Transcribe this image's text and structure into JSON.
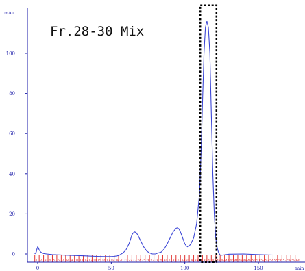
{
  "chart_data": {
    "type": "line",
    "title": "Fr.28-30 Mix",
    "ylabel": "mAu",
    "xlabel": "min",
    "xlim": [
      -7,
      175
    ],
    "ylim": [
      -4,
      125
    ],
    "xticks": [
      0,
      50,
      100,
      150
    ],
    "yticks": [
      0,
      20,
      40,
      60,
      80,
      100
    ],
    "grid": false,
    "line_color": "#3b46d6",
    "axis_color": "#1a1aa8",
    "fraction_marker_color": "#e0322f",
    "series": [
      {
        "x": [
          -2,
          -1,
          -0.5,
          0,
          0.5,
          1,
          2,
          3,
          4,
          6,
          10,
          20,
          30,
          40,
          45,
          50,
          52,
          55,
          58,
          60,
          62,
          63,
          64,
          65,
          66,
          67,
          68,
          69,
          70,
          72,
          74,
          76,
          78,
          80,
          82,
          84,
          86,
          88,
          90,
          92,
          94,
          95,
          96,
          97,
          98,
          99,
          100,
          101,
          102,
          103,
          104,
          106,
          108,
          110,
          111,
          112,
          113,
          114,
          115,
          116,
          117,
          118,
          119,
          120,
          121,
          122,
          123,
          124,
          125,
          126,
          128,
          130,
          140,
          150,
          160,
          170,
          175
        ],
        "y": [
          0,
          1,
          2.5,
          3.5,
          3,
          2,
          1,
          0.5,
          0.2,
          0,
          -0.3,
          -0.6,
          -0.9,
          -1.2,
          -1.3,
          -1.3,
          -1.2,
          -0.8,
          0.5,
          2,
          5,
          7,
          9.5,
          10.5,
          11,
          10.5,
          9.5,
          8,
          6.5,
          3.5,
          1.5,
          0.5,
          0,
          0,
          0.5,
          1,
          2.5,
          5,
          8,
          11,
          12.8,
          13,
          12.5,
          11,
          9,
          7,
          5,
          4,
          3.5,
          4,
          5,
          8,
          15,
          30,
          50,
          75,
          100,
          113,
          116,
          113,
          100,
          70,
          40,
          20,
          8,
          3,
          0.5,
          -0.5,
          -0.6,
          -0.5,
          -0.3,
          -0.1,
          0,
          -0.3,
          -0.5,
          -0.5,
          -0.5
        ]
      }
    ],
    "fraction_markers": {
      "x_start": -2,
      "x_end": 175,
      "x_step": 3
    },
    "highlight": {
      "label": "",
      "x_range": [
        110.5,
        121.5
      ],
      "y_range": [
        -4,
        124
      ]
    }
  }
}
